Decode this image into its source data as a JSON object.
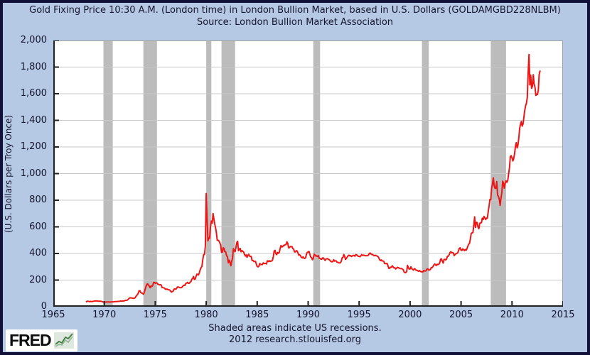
{
  "header": {
    "title_line1": "Gold Fixing Price 10:30 A.M. (London time) in London Bullion Market, based in U.S. Dollars (GOLDAMGBD228NLBM)",
    "title_line2": "Source: London Bullion Market Association"
  },
  "footer": {
    "note": "Shaded areas indicate US recessions.",
    "credit": "2012 research.stlouisfed.org",
    "logo_text": "FRED"
  },
  "colors": {
    "background": "#b6c9e4",
    "frame_border": "#101038",
    "plot_background": "#ffffff",
    "gridline": "#c9c9c9",
    "recession_band": "#bcbcbc",
    "line": "#ee1515",
    "axis_dark": "#222222",
    "axis_light": "#a0a0a0",
    "text": "#15152e",
    "logo_green": "#3f7a3f",
    "logo_green_light": "#8fb48f"
  },
  "chart_data": {
    "type": "line",
    "title": "Gold Fixing Price 10:30 A.M. (London time) in London Bullion Market, based in U.S. Dollars",
    "series_id": "GOLDAMGBD228NLBM",
    "source": "London Bullion Market Association",
    "xlabel": "",
    "ylabel": "(U.S. Dollars per Troy Once)",
    "xlim": [
      1965,
      2015
    ],
    "ylim": [
      0,
      2000
    ],
    "x_ticks": [
      1965,
      1970,
      1975,
      1980,
      1985,
      1990,
      1995,
      2000,
      2005,
      2010,
      2015
    ],
    "y_ticks": [
      0,
      200,
      400,
      600,
      800,
      1000,
      1200,
      1400,
      1600,
      1800,
      2000
    ],
    "grid": true,
    "legend_position": "none",
    "recession_bands": [
      [
        1969.917,
        1970.833
      ],
      [
        1973.833,
        1975.167
      ],
      [
        1980.0,
        1980.5
      ],
      [
        1981.5,
        1982.833
      ],
      [
        1990.5,
        1991.167
      ],
      [
        2001.167,
        2001.833
      ],
      [
        2007.917,
        2009.417
      ]
    ],
    "series": {
      "name": "GOLDAMGBD228NLBM",
      "start_year": 1968.25,
      "points_per_year": 12,
      "values": [
        38,
        41,
        41,
        39,
        39,
        40,
        39,
        39,
        41,
        42,
        43,
        43,
        43,
        43,
        41,
        42,
        41,
        41,
        40,
        37,
        35,
        35,
        35,
        35,
        36,
        36,
        36,
        35,
        35,
        36,
        37,
        37,
        37,
        38,
        39,
        39,
        39,
        40,
        40,
        41,
        43,
        42,
        42,
        43,
        43,
        46,
        48,
        48,
        49,
        55,
        62,
        66,
        67,
        65,
        65,
        63,
        64,
        65,
        74,
        84,
        90,
        102,
        120,
        120,
        106,
        103,
        100,
        94,
        106,
        129,
        150,
        168,
        172,
        163,
        154,
        143,
        155,
        152,
        159,
        182,
        183,
        176,
        180,
        178,
        170,
        167,
        164,
        166,
        163,
        144,
        143,
        142,
        140,
        131,
        131,
        133,
        128,
        127,
        126,
        118,
        110,
        114,
        116,
        131,
        134,
        132,
        136,
        148,
        149,
        146,
        143,
        143,
        144,
        150,
        158,
        162,
        160,
        175,
        178,
        183,
        175,
        176,
        184,
        189,
        206,
        212,
        227,
        206,
        208,
        227,
        245,
        242,
        239,
        257,
        279,
        294,
        303,
        355,
        392,
        392,
        455,
        850,
        665,
        494,
        517,
        514,
        600,
        644,
        627,
        700,
        661,
        623,
        594,
        557,
        499,
        499,
        495,
        480,
        465,
        409,
        410,
        443,
        437,
        413,
        410,
        384,
        374,
        330,
        350,
        333,
        308,
        339,
        364,
        436,
        422,
        414,
        444,
        481,
        492,
        420,
        433,
        438,
        413,
        422,
        416,
        412,
        394,
        381,
        389,
        371,
        386,
        394,
        381,
        377,
        378,
        347,
        348,
        341,
        340,
        341,
        320,
        303,
        299,
        304,
        325,
        317,
        317,
        317,
        329,
        324,
        326,
        325,
        321,
        345,
        339,
        346,
        340,
        343,
        343,
        349,
        377,
        418,
        424,
        398,
        391,
        408,
        401,
        408,
        438,
        460,
        449,
        451,
        461,
        460,
        466,
        467,
        487,
        477,
        442,
        444,
        452,
        451,
        451,
        437,
        431,
        412,
        412,
        421,
        418,
        404,
        387,
        390,
        384,
        371,
        367,
        375,
        365,
        362,
        367,
        394,
        409,
        410,
        416,
        393,
        374,
        369,
        353,
        363,
        395,
        389,
        381,
        382,
        378,
        384,
        364,
        363,
        358,
        357,
        367,
        367,
        356,
        348,
        359,
        360,
        361,
        354,
        354,
        344,
        339,
        337,
        340,
        353,
        343,
        345,
        344,
        335,
        334,
        329,
        329,
        330,
        342,
        367,
        372,
        392,
        378,
        355,
        364,
        373,
        383,
        387,
        382,
        384,
        377,
        381,
        386,
        385,
        380,
        391,
        390,
        384,
        379,
        378,
        376,
        382,
        391,
        385,
        388,
        386,
        384,
        383,
        383,
        385,
        387,
        400,
        404,
        396,
        392,
        392,
        385,
        383,
        387,
        383,
        381,
        378,
        369,
        355,
        346,
        352,
        344,
        344,
        341,
        324,
        324,
        323,
        325,
        307,
        288,
        289,
        297,
        296,
        308,
        299,
        292,
        293,
        284,
        289,
        296,
        294,
        291,
        287,
        287,
        286,
        283,
        277,
        261,
        256,
        257,
        264,
        311,
        293,
        283,
        284,
        300,
        286,
        280,
        275,
        286,
        282,
        274,
        274,
        270,
        266,
        272,
        266,
        262,
        263,
        261,
        272,
        270,
        268,
        272,
        284,
        283,
        276,
        276,
        281,
        295,
        294,
        303,
        314,
        321,
        314,
        310,
        319,
        317,
        319,
        333,
        357,
        359,
        341,
        328,
        355,
        356,
        351,
        360,
        379,
        379,
        390,
        407,
        414,
        405,
        407,
        403,
        384,
        392,
        398,
        400,
        405,
        420,
        439,
        442,
        424,
        423,
        434,
        429,
        422,
        430,
        424,
        437,
        456,
        470,
        476,
        510,
        550,
        555,
        557,
        611,
        675,
        596,
        634,
        632,
        598,
        586,
        627,
        630,
        631,
        665,
        655,
        679,
        667,
        655,
        665,
        665,
        713,
        755,
        806,
        803,
        890,
        922,
        968,
        910,
        889,
        889,
        940,
        839,
        829,
        807,
        761,
        816,
        858,
        943,
        924,
        890,
        929,
        946,
        934,
        949,
        997,
        1043,
        1127,
        1135,
        1118,
        1095,
        1113,
        1149,
        1205,
        1233,
        1193,
        1216,
        1271,
        1342,
        1370,
        1391,
        1356,
        1373,
        1424,
        1474,
        1510,
        1529,
        1573,
        1756,
        1895,
        1666,
        1739,
        1641,
        1656,
        1743,
        1674,
        1650,
        1587,
        1597,
        1594,
        1626,
        1745,
        1770
      ]
    }
  }
}
